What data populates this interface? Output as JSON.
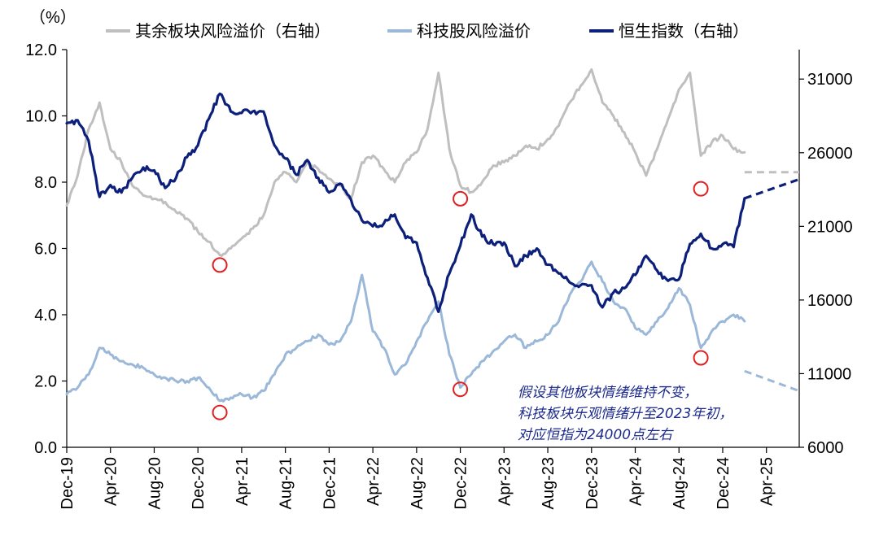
{
  "chart_data": {
    "type": "line",
    "y_unit_label": "（%）",
    "left_axis": {
      "min": 0,
      "max": 12,
      "ticks": [
        "0.0",
        "2.0",
        "4.0",
        "6.0",
        "8.0",
        "10.0",
        "12.0"
      ]
    },
    "right_axis": {
      "min": 6000,
      "max": 33000,
      "ticks": [
        "6000",
        "11000",
        "16000",
        "21000",
        "26000",
        "31000"
      ]
    },
    "x_ticks": [
      "Dec-19",
      "Apr-20",
      "Aug-20",
      "Dec-20",
      "Apr-21",
      "Aug-21",
      "Dec-21",
      "Apr-22",
      "Aug-22",
      "Dec-22",
      "Apr-23",
      "Aug-23",
      "Dec-23",
      "Apr-24",
      "Aug-24",
      "Dec-24",
      "Apr-25"
    ],
    "x_range": [
      "2019-12",
      "2025-07"
    ],
    "legend": [
      {
        "name": "其余板块风险溢价（右轴）",
        "color": "#bfbfbf"
      },
      {
        "name": "科技股风险溢价",
        "color": "#9cb8d9"
      },
      {
        "name": "恒生指数（右轴）",
        "color": "#0c1f7a"
      }
    ],
    "series": [
      {
        "name": "其余板块风险溢价（右轴）",
        "axis": "left",
        "color": "#bfbfbf",
        "points": [
          [
            "2019-12",
            7.3
          ],
          [
            "2020-01",
            8.2
          ],
          [
            "2020-02",
            9.6
          ],
          [
            "2020-03",
            10.4
          ],
          [
            "2020-04",
            9.0
          ],
          [
            "2020-05",
            8.6
          ],
          [
            "2020-06",
            7.9
          ],
          [
            "2020-07",
            7.6
          ],
          [
            "2020-08",
            7.5
          ],
          [
            "2020-09",
            7.4
          ],
          [
            "2020-10",
            7.1
          ],
          [
            "2020-11",
            6.9
          ],
          [
            "2020-12",
            6.5
          ],
          [
            "2021-01",
            6.2
          ],
          [
            "2021-02",
            5.8
          ],
          [
            "2021-03",
            6.0
          ],
          [
            "2021-04",
            6.3
          ],
          [
            "2021-05",
            6.6
          ],
          [
            "2021-06",
            7.0
          ],
          [
            "2021-07",
            8.0
          ],
          [
            "2021-08",
            8.3
          ],
          [
            "2021-09",
            8.0
          ],
          [
            "2021-10",
            8.6
          ],
          [
            "2021-11",
            8.4
          ],
          [
            "2021-12",
            8.1
          ],
          [
            "2022-01",
            7.9
          ],
          [
            "2022-02",
            7.5
          ],
          [
            "2022-03",
            8.6
          ],
          [
            "2022-04",
            8.8
          ],
          [
            "2022-05",
            8.4
          ],
          [
            "2022-06",
            8.0
          ],
          [
            "2022-07",
            8.6
          ],
          [
            "2022-08",
            8.9
          ],
          [
            "2022-09",
            9.6
          ],
          [
            "2022-10",
            11.3
          ],
          [
            "2022-11",
            9.0
          ],
          [
            "2022-12",
            7.9
          ],
          [
            "2023-01",
            7.7
          ],
          [
            "2023-02",
            8.0
          ],
          [
            "2023-03",
            8.5
          ],
          [
            "2023-04",
            8.6
          ],
          [
            "2023-05",
            8.8
          ],
          [
            "2023-06",
            9.1
          ],
          [
            "2023-07",
            9.0
          ],
          [
            "2023-08",
            9.3
          ],
          [
            "2023-09",
            9.7
          ],
          [
            "2023-10",
            10.4
          ],
          [
            "2023-11",
            10.9
          ],
          [
            "2023-12",
            11.4
          ],
          [
            "2024-01",
            10.4
          ],
          [
            "2024-02",
            10.0
          ],
          [
            "2024-03",
            9.5
          ],
          [
            "2024-04",
            8.9
          ],
          [
            "2024-05",
            8.2
          ],
          [
            "2024-06",
            9.0
          ],
          [
            "2024-07",
            9.9
          ],
          [
            "2024-08",
            10.8
          ],
          [
            "2024-09",
            11.3
          ],
          [
            "2024-10",
            8.8
          ],
          [
            "2024-11",
            9.2
          ],
          [
            "2024-12",
            9.4
          ],
          [
            "2025-01",
            9.0
          ],
          [
            "2025-02",
            8.9
          ]
        ],
        "projection": [
          [
            "2025-02",
            8.3
          ],
          [
            "2025-07",
            8.3
          ]
        ]
      },
      {
        "name": "科技股风险溢价",
        "axis": "left",
        "color": "#9cb8d9",
        "points": [
          [
            "2019-12",
            1.6
          ],
          [
            "2020-01",
            1.8
          ],
          [
            "2020-02",
            2.2
          ],
          [
            "2020-03",
            3.0
          ],
          [
            "2020-04",
            2.8
          ],
          [
            "2020-05",
            2.6
          ],
          [
            "2020-06",
            2.5
          ],
          [
            "2020-07",
            2.4
          ],
          [
            "2020-08",
            2.2
          ],
          [
            "2020-09",
            2.1
          ],
          [
            "2020-10",
            2.0
          ],
          [
            "2020-11",
            2.0
          ],
          [
            "2020-12",
            2.1
          ],
          [
            "2021-01",
            1.8
          ],
          [
            "2021-02",
            1.4
          ],
          [
            "2021-03",
            1.5
          ],
          [
            "2021-04",
            1.6
          ],
          [
            "2021-05",
            1.5
          ],
          [
            "2021-06",
            1.7
          ],
          [
            "2021-07",
            2.2
          ],
          [
            "2021-08",
            2.8
          ],
          [
            "2021-09",
            3.0
          ],
          [
            "2021-10",
            3.2
          ],
          [
            "2021-11",
            3.4
          ],
          [
            "2021-12",
            3.1
          ],
          [
            "2022-01",
            3.2
          ],
          [
            "2022-02",
            3.8
          ],
          [
            "2022-03",
            5.2
          ],
          [
            "2022-04",
            3.5
          ],
          [
            "2022-05",
            3.0
          ],
          [
            "2022-06",
            2.2
          ],
          [
            "2022-07",
            2.5
          ],
          [
            "2022-08",
            3.2
          ],
          [
            "2022-09",
            3.8
          ],
          [
            "2022-10",
            4.4
          ],
          [
            "2022-11",
            2.8
          ],
          [
            "2022-12",
            1.8
          ],
          [
            "2023-01",
            2.2
          ],
          [
            "2023-02",
            2.6
          ],
          [
            "2023-03",
            2.9
          ],
          [
            "2023-04",
            3.2
          ],
          [
            "2023-05",
            3.4
          ],
          [
            "2023-06",
            3.0
          ],
          [
            "2023-07",
            3.2
          ],
          [
            "2023-08",
            3.4
          ],
          [
            "2023-09",
            3.8
          ],
          [
            "2023-10",
            4.6
          ],
          [
            "2023-11",
            5.0
          ],
          [
            "2023-12",
            5.6
          ],
          [
            "2024-01",
            5.0
          ],
          [
            "2024-02",
            4.4
          ],
          [
            "2024-03",
            4.2
          ],
          [
            "2024-04",
            3.6
          ],
          [
            "2024-05",
            3.4
          ],
          [
            "2024-06",
            3.8
          ],
          [
            "2024-07",
            4.2
          ],
          [
            "2024-08",
            4.8
          ],
          [
            "2024-09",
            4.3
          ],
          [
            "2024-10",
            3.0
          ],
          [
            "2024-11",
            3.5
          ],
          [
            "2024-12",
            3.8
          ],
          [
            "2025-01",
            4.0
          ],
          [
            "2025-02",
            3.8
          ]
        ],
        "projection": [
          [
            "2025-02",
            2.3
          ],
          [
            "2025-07",
            1.7
          ]
        ]
      },
      {
        "name": "恒生指数（右轴）",
        "axis": "right",
        "color": "#0c1f7a",
        "points": [
          [
            "2019-12",
            28000
          ],
          [
            "2020-01",
            28200
          ],
          [
            "2020-02",
            26800
          ],
          [
            "2020-03",
            23000
          ],
          [
            "2020-04",
            23800
          ],
          [
            "2020-05",
            23300
          ],
          [
            "2020-06",
            24300
          ],
          [
            "2020-07",
            25000
          ],
          [
            "2020-08",
            24800
          ],
          [
            "2020-09",
            23600
          ],
          [
            "2020-10",
            24300
          ],
          [
            "2020-11",
            25700
          ],
          [
            "2020-12",
            26500
          ],
          [
            "2021-01",
            28300
          ],
          [
            "2021-02",
            30000
          ],
          [
            "2021-03",
            28800
          ],
          [
            "2021-04",
            28700
          ],
          [
            "2021-05",
            28800
          ],
          [
            "2021-06",
            28800
          ],
          [
            "2021-07",
            26500
          ],
          [
            "2021-08",
            25600
          ],
          [
            "2021-09",
            24500
          ],
          [
            "2021-10",
            25500
          ],
          [
            "2021-11",
            24300
          ],
          [
            "2021-12",
            23300
          ],
          [
            "2022-01",
            23900
          ],
          [
            "2022-02",
            22800
          ],
          [
            "2022-03",
            21400
          ],
          [
            "2022-04",
            21000
          ],
          [
            "2022-05",
            21200
          ],
          [
            "2022-06",
            21800
          ],
          [
            "2022-07",
            20200
          ],
          [
            "2022-08",
            19900
          ],
          [
            "2022-09",
            17500
          ],
          [
            "2022-10",
            15200
          ],
          [
            "2022-11",
            17800
          ],
          [
            "2022-12",
            19700
          ],
          [
            "2023-01",
            21800
          ],
          [
            "2023-02",
            20300
          ],
          [
            "2023-03",
            19800
          ],
          [
            "2023-04",
            19900
          ],
          [
            "2023-05",
            18300
          ],
          [
            "2023-06",
            19000
          ],
          [
            "2023-07",
            19500
          ],
          [
            "2023-08",
            18400
          ],
          [
            "2023-09",
            17800
          ],
          [
            "2023-10",
            17200
          ],
          [
            "2023-11",
            17000
          ],
          [
            "2023-12",
            17000
          ],
          [
            "2024-01",
            15500
          ],
          [
            "2024-02",
            16500
          ],
          [
            "2024-03",
            16800
          ],
          [
            "2024-04",
            17700
          ],
          [
            "2024-05",
            19000
          ],
          [
            "2024-06",
            18000
          ],
          [
            "2024-07",
            17300
          ],
          [
            "2024-08",
            17400
          ],
          [
            "2024-09",
            19800
          ],
          [
            "2024-10",
            20500
          ],
          [
            "2024-11",
            19500
          ],
          [
            "2024-12",
            19800
          ],
          [
            "2025-01",
            19600
          ],
          [
            "2025-02",
            22900
          ]
        ],
        "projection": [
          [
            "2025-02",
            22900
          ],
          [
            "2025-07",
            24200
          ]
        ]
      }
    ],
    "markers": [
      {
        "x": "2021-02",
        "axis": "left",
        "y": 5.5,
        "color": "#e02020"
      },
      {
        "x": "2021-02",
        "axis": "left",
        "y": 1.05,
        "color": "#e02020"
      },
      {
        "x": "2022-12",
        "axis": "left",
        "y": 7.5,
        "color": "#e02020"
      },
      {
        "x": "2022-12",
        "axis": "left",
        "y": 1.75,
        "color": "#e02020"
      },
      {
        "x": "2024-10",
        "axis": "left",
        "y": 7.8,
        "color": "#e02020"
      },
      {
        "x": "2024-10",
        "axis": "left",
        "y": 2.7,
        "color": "#e02020"
      }
    ],
    "annotation": [
      "假设其他板块情绪维持不变，",
      "科技板块乐观情绪升至2023年初，",
      "对应恒指为24000点左右"
    ]
  }
}
